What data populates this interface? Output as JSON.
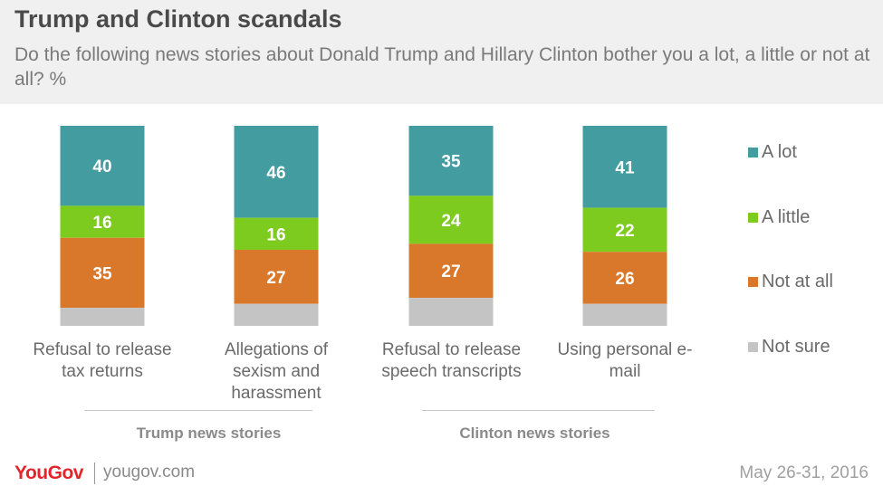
{
  "header": {
    "title": "Trump and Clinton scandals",
    "subtitle": "Do the following news stories about Donald Trump and Hillary Clinton bother you a lot, a little or not at all? %"
  },
  "chart_data": {
    "type": "bar",
    "stacked": true,
    "categories": [
      "Refusal to release tax returns",
      "Allegations of sexism and harassment",
      "Refusal to release speech transcripts",
      "Using personal e-mail"
    ],
    "series": [
      {
        "name": "A lot",
        "color": "#429ca0",
        "values": [
          40,
          46,
          35,
          41
        ]
      },
      {
        "name": "A little",
        "color": "#7ecb20",
        "values": [
          16,
          16,
          24,
          22
        ]
      },
      {
        "name": "Not at all",
        "color": "#d9782a",
        "values": [
          35,
          27,
          27,
          26
        ]
      },
      {
        "name": "Not sure",
        "color": "#c4c4c4",
        "values": [
          9,
          11,
          14,
          11
        ],
        "labels_shown": false
      }
    ],
    "ylim": [
      0,
      100
    ],
    "legend_position": "right",
    "groups": [
      {
        "label": "Trump news stories",
        "categories": [
          0,
          1
        ]
      },
      {
        "label": "Clinton news stories",
        "categories": [
          2,
          3
        ]
      }
    ]
  },
  "footer": {
    "brand": "YouGov",
    "site": "yougov.com",
    "date": "May 26-31, 2016"
  }
}
